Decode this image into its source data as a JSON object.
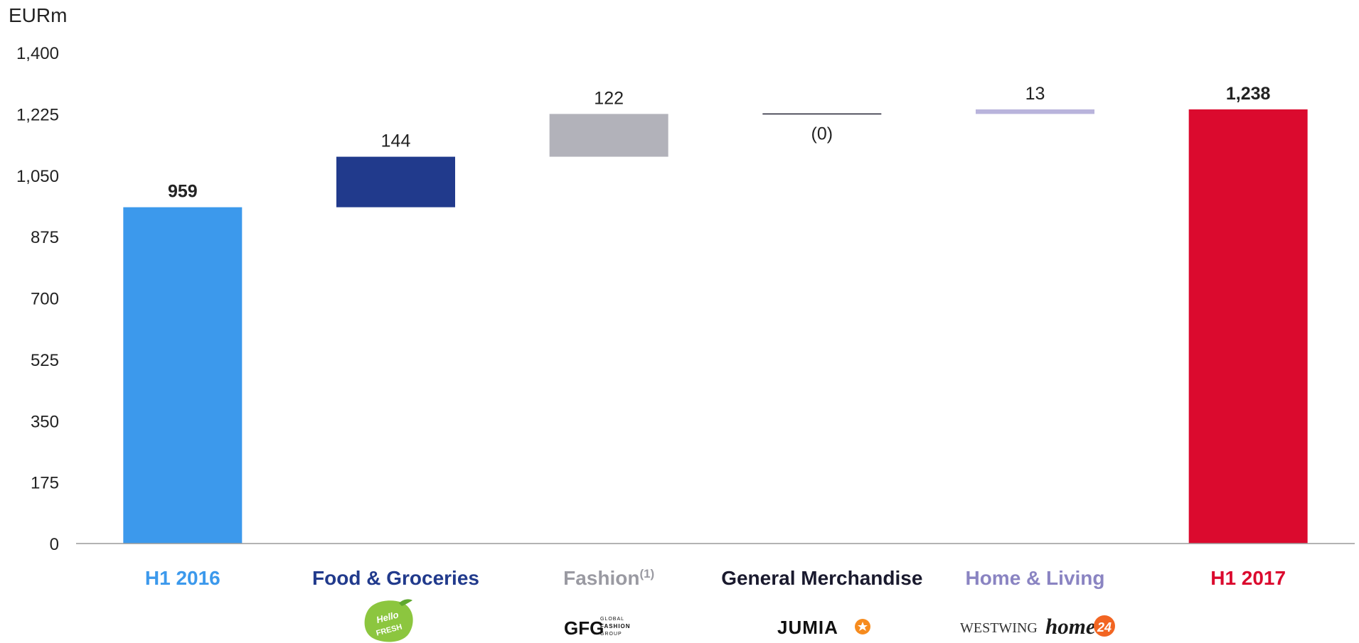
{
  "chart_data": {
    "type": "bar",
    "subtype": "waterfall",
    "unit_label": "EURm",
    "ylim": [
      0,
      1400
    ],
    "yticks": [
      0,
      175,
      350,
      525,
      700,
      875,
      1050,
      1225,
      1400
    ],
    "ytick_labels": [
      "0",
      "175",
      "350",
      "525",
      "700",
      "875",
      "1,050",
      "1,225",
      "1,400"
    ],
    "grid": false,
    "categories": [
      "H1 2016",
      "Food & Groceries",
      "Fashion",
      "General Merchandise",
      "Home & Living",
      "H1 2017"
    ],
    "category_superscripts": [
      "",
      "",
      "(1)",
      "",
      "",
      ""
    ],
    "bars": [
      {
        "category": "H1 2016",
        "kind": "total",
        "start": 0,
        "end": 959,
        "label": "959",
        "bold": true,
        "color": "#3c99ec",
        "label_color": "#3c99ec"
      },
      {
        "category": "Food & Groceries",
        "kind": "delta",
        "start": 959,
        "end": 1103,
        "label": "144",
        "bold": false,
        "color": "#213a8c",
        "label_color": "#213a8c"
      },
      {
        "category": "Fashion",
        "kind": "delta",
        "start": 1103,
        "end": 1225,
        "label": "122",
        "bold": false,
        "color": "#b2b2ba",
        "label_color": "#9a9aa2"
      },
      {
        "category": "General Merchandise",
        "kind": "delta",
        "start": 1225,
        "end": 1225,
        "label": "(0)",
        "bold": false,
        "color": "#222233",
        "label_color": "#1a1a2e"
      },
      {
        "category": "Home & Living",
        "kind": "delta",
        "start": 1225,
        "end": 1238,
        "label": "13",
        "bold": false,
        "color": "#b9b4dc",
        "label_color": "#8a84c2"
      },
      {
        "category": "H1 2017",
        "kind": "total",
        "start": 0,
        "end": 1238,
        "label": "1,238",
        "bold": true,
        "color": "#db0a2e",
        "label_color": "#db0a2e"
      }
    ]
  },
  "logos": {
    "food": "Hello FRESH",
    "fashion_mark": "GFG",
    "fashion_text": [
      "GLOBAL",
      "FASHION",
      "GROUP"
    ],
    "general": "JUMIA",
    "home_1": "WESTWING",
    "home_2": "home24"
  }
}
